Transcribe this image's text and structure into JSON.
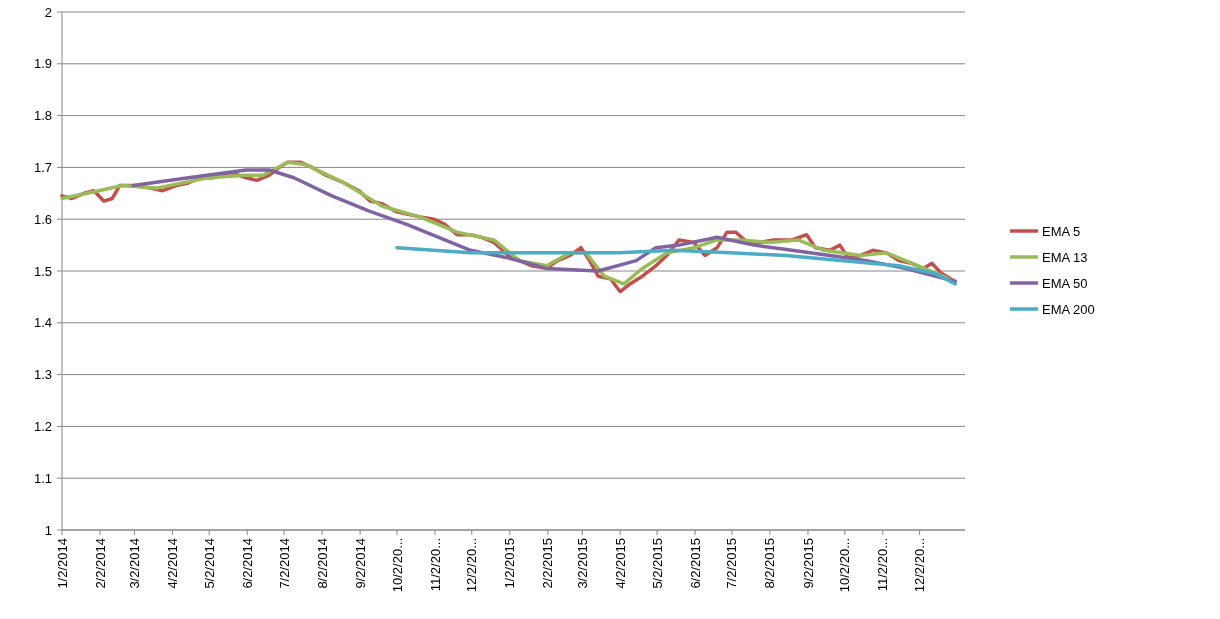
{
  "chart_data": {
    "type": "line",
    "ylim": [
      1,
      2
    ],
    "yticks": [
      1,
      1.1,
      1.2,
      1.3,
      1.4,
      1.5,
      1.6,
      1.7,
      1.8,
      1.9,
      2
    ],
    "xlim": [
      "2014-01-02",
      "2016-01-08"
    ],
    "xticks": [
      {
        "value": "2014-01-02",
        "label": "1/2/2014"
      },
      {
        "value": "2014-02-02",
        "label": "2/2/2014"
      },
      {
        "value": "2014-03-02",
        "label": "3/2/2014"
      },
      {
        "value": "2014-04-02",
        "label": "4/2/2014"
      },
      {
        "value": "2014-05-02",
        "label": "5/2/2014"
      },
      {
        "value": "2014-06-02",
        "label": "6/2/2014"
      },
      {
        "value": "2014-07-02",
        "label": "7/2/2014"
      },
      {
        "value": "2014-08-02",
        "label": "8/2/2014"
      },
      {
        "value": "2014-09-02",
        "label": "9/2/2014"
      },
      {
        "value": "2014-10-02",
        "label": "10/2/20..."
      },
      {
        "value": "2014-11-02",
        "label": "11/2/20..."
      },
      {
        "value": "2014-12-02",
        "label": "12/2/20..."
      },
      {
        "value": "2015-01-02",
        "label": "1/2/2015"
      },
      {
        "value": "2015-02-02",
        "label": "2/2/2015"
      },
      {
        "value": "2015-03-02",
        "label": "3/2/2015"
      },
      {
        "value": "2015-04-02",
        "label": "4/2/2015"
      },
      {
        "value": "2015-05-02",
        "label": "5/2/2015"
      },
      {
        "value": "2015-06-02",
        "label": "6/2/2015"
      },
      {
        "value": "2015-07-02",
        "label": "7/2/2015"
      },
      {
        "value": "2015-08-02",
        "label": "8/2/2015"
      },
      {
        "value": "2015-09-02",
        "label": "9/2/2015"
      },
      {
        "value": "2015-10-02",
        "label": "10/2/20..."
      },
      {
        "value": "2015-11-02",
        "label": "11/2/20..."
      },
      {
        "value": "2015-12-02",
        "label": "12/2/20..."
      }
    ],
    "grid": "y",
    "legend": "right",
    "line_style": "solid",
    "series": [
      {
        "name": "EMA 5",
        "color": "#c0504d",
        "x": [
          "2014-01-02",
          "2014-01-10",
          "2014-01-20",
          "2014-01-28",
          "2014-02-05",
          "2014-02-12",
          "2014-02-18",
          "2014-03-01",
          "2014-03-15",
          "2014-03-25",
          "2014-04-05",
          "2014-04-15",
          "2014-04-25",
          "2014-05-05",
          "2014-05-20",
          "2014-06-01",
          "2014-06-10",
          "2014-06-20",
          "2014-06-28",
          "2014-07-05",
          "2014-07-15",
          "2014-07-25",
          "2014-08-05",
          "2014-08-20",
          "2014-09-01",
          "2014-09-10",
          "2014-09-20",
          "2014-10-01",
          "2014-10-10",
          "2014-10-20",
          "2014-11-01",
          "2014-11-10",
          "2014-11-20",
          "2014-12-01",
          "2014-12-10",
          "2014-12-20",
          "2015-01-01",
          "2015-01-10",
          "2015-01-20",
          "2015-02-01",
          "2015-02-10",
          "2015-02-20",
          "2015-03-01",
          "2015-03-08",
          "2015-03-15",
          "2015-03-25",
          "2015-04-02",
          "2015-04-10",
          "2015-04-20",
          "2015-05-01",
          "2015-05-10",
          "2015-05-20",
          "2015-06-01",
          "2015-06-10",
          "2015-06-20",
          "2015-06-28",
          "2015-07-05",
          "2015-07-15",
          "2015-07-25",
          "2015-08-05",
          "2015-08-20",
          "2015-09-01",
          "2015-09-08",
          "2015-09-20",
          "2015-09-28",
          "2015-10-05",
          "2015-10-15",
          "2015-10-25",
          "2015-11-05",
          "2015-11-15",
          "2015-11-25",
          "2015-12-05",
          "2015-12-12",
          "2015-12-20",
          "2015-12-31"
        ],
        "values": [
          1.645,
          1.64,
          1.65,
          1.655,
          1.635,
          1.64,
          1.665,
          1.665,
          1.66,
          1.655,
          1.665,
          1.67,
          1.68,
          1.68,
          1.69,
          1.68,
          1.675,
          1.685,
          1.7,
          1.71,
          1.71,
          1.7,
          1.685,
          1.67,
          1.655,
          1.635,
          1.63,
          1.615,
          1.61,
          1.605,
          1.6,
          1.59,
          1.57,
          1.57,
          1.565,
          1.555,
          1.53,
          1.52,
          1.51,
          1.505,
          1.52,
          1.53,
          1.545,
          1.52,
          1.49,
          1.485,
          1.46,
          1.475,
          1.49,
          1.51,
          1.53,
          1.56,
          1.555,
          1.53,
          1.545,
          1.575,
          1.575,
          1.555,
          1.555,
          1.56,
          1.56,
          1.57,
          1.545,
          1.54,
          1.55,
          1.525,
          1.53,
          1.54,
          1.535,
          1.52,
          1.515,
          1.505,
          1.515,
          1.495,
          1.48
        ]
      },
      {
        "name": "EMA 13",
        "color": "#9bbb59",
        "x": [
          "2014-01-02",
          "2014-02-01",
          "2014-02-20",
          "2014-03-20",
          "2014-05-01",
          "2014-06-01",
          "2014-06-15",
          "2014-07-05",
          "2014-07-20",
          "2014-08-20",
          "2014-09-20",
          "2014-10-20",
          "2014-11-20",
          "2014-12-20",
          "2015-01-10",
          "2015-02-01",
          "2015-02-20",
          "2015-03-05",
          "2015-03-20",
          "2015-04-05",
          "2015-04-20",
          "2015-05-10",
          "2015-06-01",
          "2015-06-20",
          "2015-07-10",
          "2015-08-01",
          "2015-08-25",
          "2015-09-15",
          "2015-10-15",
          "2015-11-05",
          "2015-12-01",
          "2015-12-31"
        ],
        "values": [
          1.64,
          1.655,
          1.665,
          1.66,
          1.68,
          1.685,
          1.685,
          1.71,
          1.705,
          1.67,
          1.625,
          1.605,
          1.575,
          1.56,
          1.52,
          1.51,
          1.535,
          1.535,
          1.49,
          1.475,
          1.505,
          1.535,
          1.545,
          1.56,
          1.56,
          1.555,
          1.56,
          1.54,
          1.53,
          1.535,
          1.51,
          1.48
        ]
      },
      {
        "name": "EMA 50",
        "color": "#8064a2",
        "x": [
          "2014-03-01",
          "2014-04-15",
          "2014-06-01",
          "2014-06-20",
          "2014-07-10",
          "2014-08-10",
          "2014-09-10",
          "2014-10-10",
          "2014-11-10",
          "2014-12-01",
          "2015-01-01",
          "2015-02-01",
          "2015-03-15",
          "2015-04-15",
          "2015-05-01",
          "2015-05-20",
          "2015-06-20",
          "2015-07-20",
          "2015-08-20",
          "2015-09-20",
          "2015-10-20",
          "2015-11-20",
          "2015-12-31"
        ],
        "values": [
          1.665,
          1.68,
          1.695,
          1.695,
          1.68,
          1.645,
          1.615,
          1.59,
          1.56,
          1.54,
          1.525,
          1.505,
          1.5,
          1.52,
          1.545,
          1.55,
          1.565,
          1.55,
          1.54,
          1.53,
          1.52,
          1.505,
          1.48
        ]
      },
      {
        "name": "EMA 200",
        "color": "#4bacc6",
        "x": [
          "2014-10-02",
          "2014-12-01",
          "2015-02-01",
          "2015-04-01",
          "2015-05-15",
          "2015-07-01",
          "2015-08-15",
          "2015-10-01",
          "2015-11-15",
          "2015-12-15",
          "2015-12-31"
        ],
        "values": [
          1.545,
          1.535,
          1.535,
          1.535,
          1.54,
          1.535,
          1.53,
          1.52,
          1.51,
          1.495,
          1.475
        ]
      }
    ]
  }
}
